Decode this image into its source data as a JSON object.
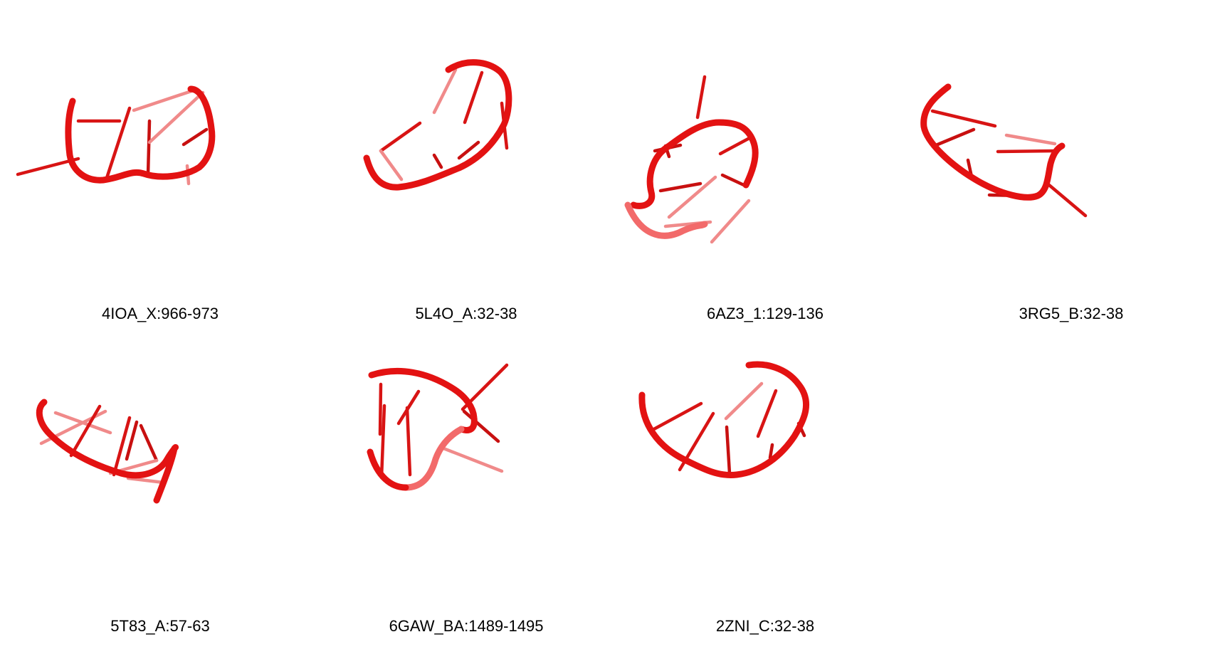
{
  "structures": [
    {
      "id": "p1",
      "label": "4IOA_X:966-973"
    },
    {
      "id": "p2",
      "label": "5L4O_A:32-38"
    },
    {
      "id": "p3",
      "label": "6AZ3_1:129-136"
    },
    {
      "id": "p4",
      "label": "3RG5_B:32-38"
    },
    {
      "id": "p5",
      "label": "5T83_A:57-63"
    },
    {
      "id": "p6",
      "label": "6GAW_BA:1489-1495"
    },
    {
      "id": "p7",
      "label": "2ZNI_C:32-38"
    }
  ],
  "colors": {
    "backbone": "#e31212",
    "backbone_light": "#f26a6a",
    "stick": "#d81414",
    "stick_light": "#f08a8a",
    "caption": "#000000",
    "background": "#ffffff"
  }
}
